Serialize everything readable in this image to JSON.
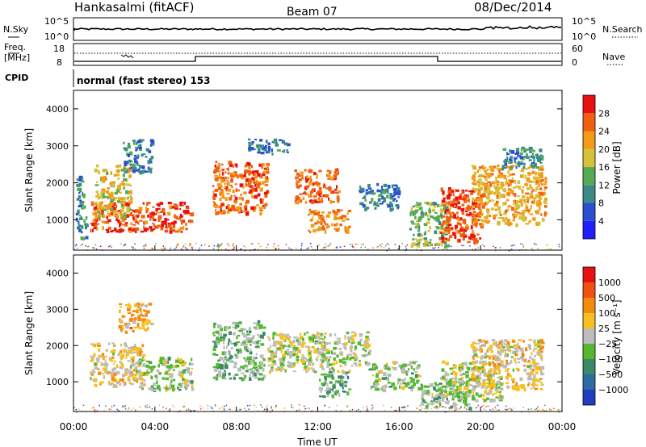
{
  "header": {
    "station": "Hankasalmi (fitACF)",
    "beam": "Beam 07",
    "date": "08/Dec/2014"
  },
  "nsky_panel": {
    "left_label_1": "N.Sky",
    "right_label_1": "N.Search",
    "tick_top": "10^5",
    "tick_bottom": "10^0",
    "right_tick_top": "10^5",
    "right_tick_bottom": "10^0"
  },
  "freq_panel": {
    "left_label_1": "Freq.",
    "left_label_2": "[MHz]",
    "right_label": "Nave",
    "left_tick_top": "18",
    "left_tick_bottom": "8",
    "right_tick_top": "60",
    "right_tick_bottom": "0"
  },
  "cpid": {
    "label": "CPID",
    "program": "normal (fast stereo) 153"
  },
  "power_colorbar": {
    "label": "Power [dB]",
    "ticks": [
      "4",
      "8",
      "12",
      "16",
      "20",
      "24",
      "28"
    ],
    "colors": [
      "#1f1fff",
      "#2a4fd0",
      "#3a8a8a",
      "#55aa55",
      "#d6c23a",
      "#f39a16",
      "#f06010",
      "#e81010"
    ]
  },
  "velocity_colorbar": {
    "label": "Velocity [m s⁻¹]",
    "ticks": [
      "1000",
      "500",
      "100",
      "25",
      "−25",
      "−100",
      "−500",
      "−1000"
    ],
    "colors": [
      "#1f3fbf",
      "#2f6aa0",
      "#3a8a6a",
      "#55b830",
      "#bcbcbc",
      "#f5c020",
      "#f58a10",
      "#f05010",
      "#e81010"
    ]
  },
  "axes": {
    "ylabel": "Slant Range [km]",
    "xlabel": "Time UT",
    "yticks": [
      "1000",
      "2000",
      "3000",
      "4000"
    ],
    "xticks": [
      "00:00",
      "04:00",
      "08:00",
      "12:00",
      "16:00",
      "20:00",
      "00:00"
    ]
  },
  "chart_data": {
    "type": "heatmap",
    "title": "Hankasalmi (fitACF) Beam 07 08/Dec/2014",
    "xlabel": "Time UT",
    "ylabel": "Slant Range [km]",
    "xlim_hours": [
      0,
      24
    ],
    "ylim_km": [
      180,
      4500
    ],
    "panels": [
      {
        "name": "Power",
        "units": "dB",
        "colorbar_range": [
          0,
          30
        ],
        "regions": [
          {
            "t0": 0.1,
            "t1": 0.6,
            "r0": 500,
            "r1": 2200,
            "value": 10
          },
          {
            "t0": 0.8,
            "t1": 5.8,
            "r0": 700,
            "r1": 1500,
            "value": 26
          },
          {
            "t0": 1.0,
            "t1": 2.8,
            "r0": 1100,
            "r1": 2500,
            "value": 18
          },
          {
            "t0": 2.4,
            "t1": 3.8,
            "r0": 2300,
            "r1": 3200,
            "value": 8
          },
          {
            "t0": 6.8,
            "t1": 9.5,
            "r0": 1200,
            "r1": 2600,
            "value": 24
          },
          {
            "t0": 8.5,
            "t1": 10.5,
            "r0": 2800,
            "r1": 3200,
            "value": 8
          },
          {
            "t0": 10.8,
            "t1": 13.0,
            "r0": 1500,
            "r1": 2400,
            "value": 24
          },
          {
            "t0": 11.5,
            "t1": 13.5,
            "r0": 700,
            "r1": 1300,
            "value": 22
          },
          {
            "t0": 14.0,
            "t1": 16.0,
            "r0": 1300,
            "r1": 2000,
            "value": 8
          },
          {
            "t0": 16.5,
            "t1": 18.5,
            "r0": 300,
            "r1": 1500,
            "value": 14
          },
          {
            "t0": 18.0,
            "t1": 20.0,
            "r0": 400,
            "r1": 1900,
            "value": 26
          },
          {
            "t0": 19.5,
            "t1": 23.2,
            "r0": 900,
            "r1": 2500,
            "value": 20
          },
          {
            "t0": 21.0,
            "t1": 23.0,
            "r0": 2400,
            "r1": 3000,
            "value": 10
          }
        ]
      },
      {
        "name": "Velocity",
        "units": "m s⁻¹",
        "colorbar_range": [
          -1000,
          1000
        ],
        "regions": [
          {
            "t0": 0.8,
            "t1": 3.5,
            "r0": 900,
            "r1": 2100,
            "value": 150
          },
          {
            "t0": 3.0,
            "t1": 5.8,
            "r0": 800,
            "r1": 1700,
            "value": -80
          },
          {
            "t0": 2.2,
            "t1": 3.8,
            "r0": 2400,
            "r1": 3200,
            "value": 300
          },
          {
            "t0": 6.8,
            "t1": 9.3,
            "r0": 1100,
            "r1": 2700,
            "value": -200
          },
          {
            "t0": 9.5,
            "t1": 14.5,
            "r0": 1300,
            "r1": 2400,
            "value": 0
          },
          {
            "t0": 12.0,
            "t1": 13.5,
            "r0": 600,
            "r1": 1300,
            "value": -300
          },
          {
            "t0": 14.5,
            "t1": 17.0,
            "r0": 800,
            "r1": 1600,
            "value": -80
          },
          {
            "t0": 17.0,
            "t1": 19.5,
            "r0": 300,
            "r1": 1000,
            "value": -150
          },
          {
            "t0": 18.0,
            "t1": 21.0,
            "r0": 500,
            "r1": 1600,
            "value": 0
          },
          {
            "t0": 19.5,
            "t1": 23.0,
            "r0": 800,
            "r1": 2200,
            "value": 150
          }
        ]
      }
    ]
  }
}
